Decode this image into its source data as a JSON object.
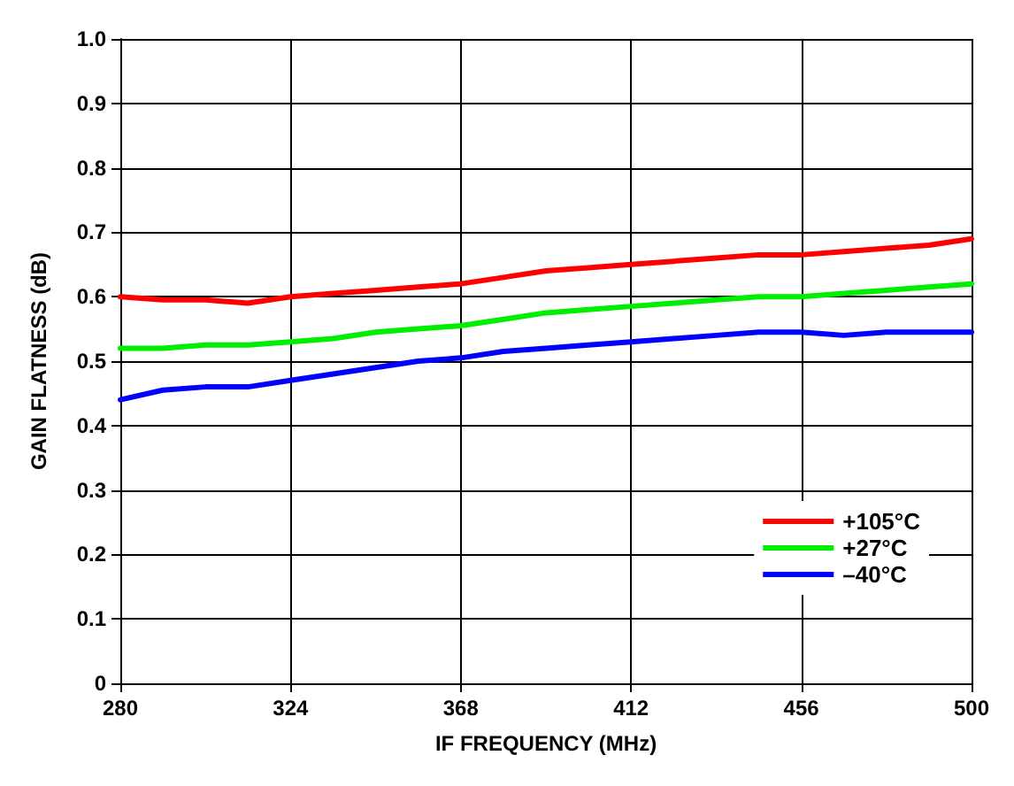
{
  "chart_data": {
    "type": "line",
    "xlabel": "IF FREQUENCY (MHz)",
    "ylabel": "GAIN FLATNESS (dB)",
    "x": [
      280,
      291,
      302,
      313,
      324,
      335,
      346,
      357,
      368,
      379,
      390,
      401,
      412,
      423,
      434,
      445,
      456,
      467,
      478,
      489,
      500
    ],
    "series": [
      {
        "name": "+105°C",
        "color": "#ff0000",
        "values": [
          0.6,
          0.595,
          0.595,
          0.59,
          0.6,
          0.605,
          0.61,
          0.615,
          0.62,
          0.63,
          0.64,
          0.645,
          0.65,
          0.655,
          0.66,
          0.665,
          0.665,
          0.67,
          0.675,
          0.68,
          0.69
        ]
      },
      {
        "name": "+27°C",
        "color": "#00ee00",
        "values": [
          0.52,
          0.52,
          0.525,
          0.525,
          0.53,
          0.535,
          0.545,
          0.55,
          0.555,
          0.565,
          0.575,
          0.58,
          0.585,
          0.59,
          0.595,
          0.6,
          0.6,
          0.605,
          0.61,
          0.615,
          0.62
        ]
      },
      {
        "name": "–40°C",
        "color": "#0000ff",
        "values": [
          0.44,
          0.455,
          0.46,
          0.46,
          0.47,
          0.48,
          0.49,
          0.5,
          0.505,
          0.515,
          0.52,
          0.525,
          0.53,
          0.535,
          0.54,
          0.545,
          0.545,
          0.54,
          0.545,
          0.545,
          0.545
        ]
      }
    ],
    "xlim": [
      280,
      500
    ],
    "xticks": [
      280,
      324,
      368,
      412,
      456,
      500
    ],
    "ylim": [
      0,
      1.0
    ],
    "yticks": [
      0,
      0.1,
      0.2,
      0.3,
      0.4,
      0.5,
      0.6,
      0.7,
      0.8,
      0.9,
      {
        "value": 1.0,
        "label": "1.0"
      }
    ],
    "grid": true,
    "legend": "bottom right",
    "marker": "none",
    "line_style": "solid"
  }
}
